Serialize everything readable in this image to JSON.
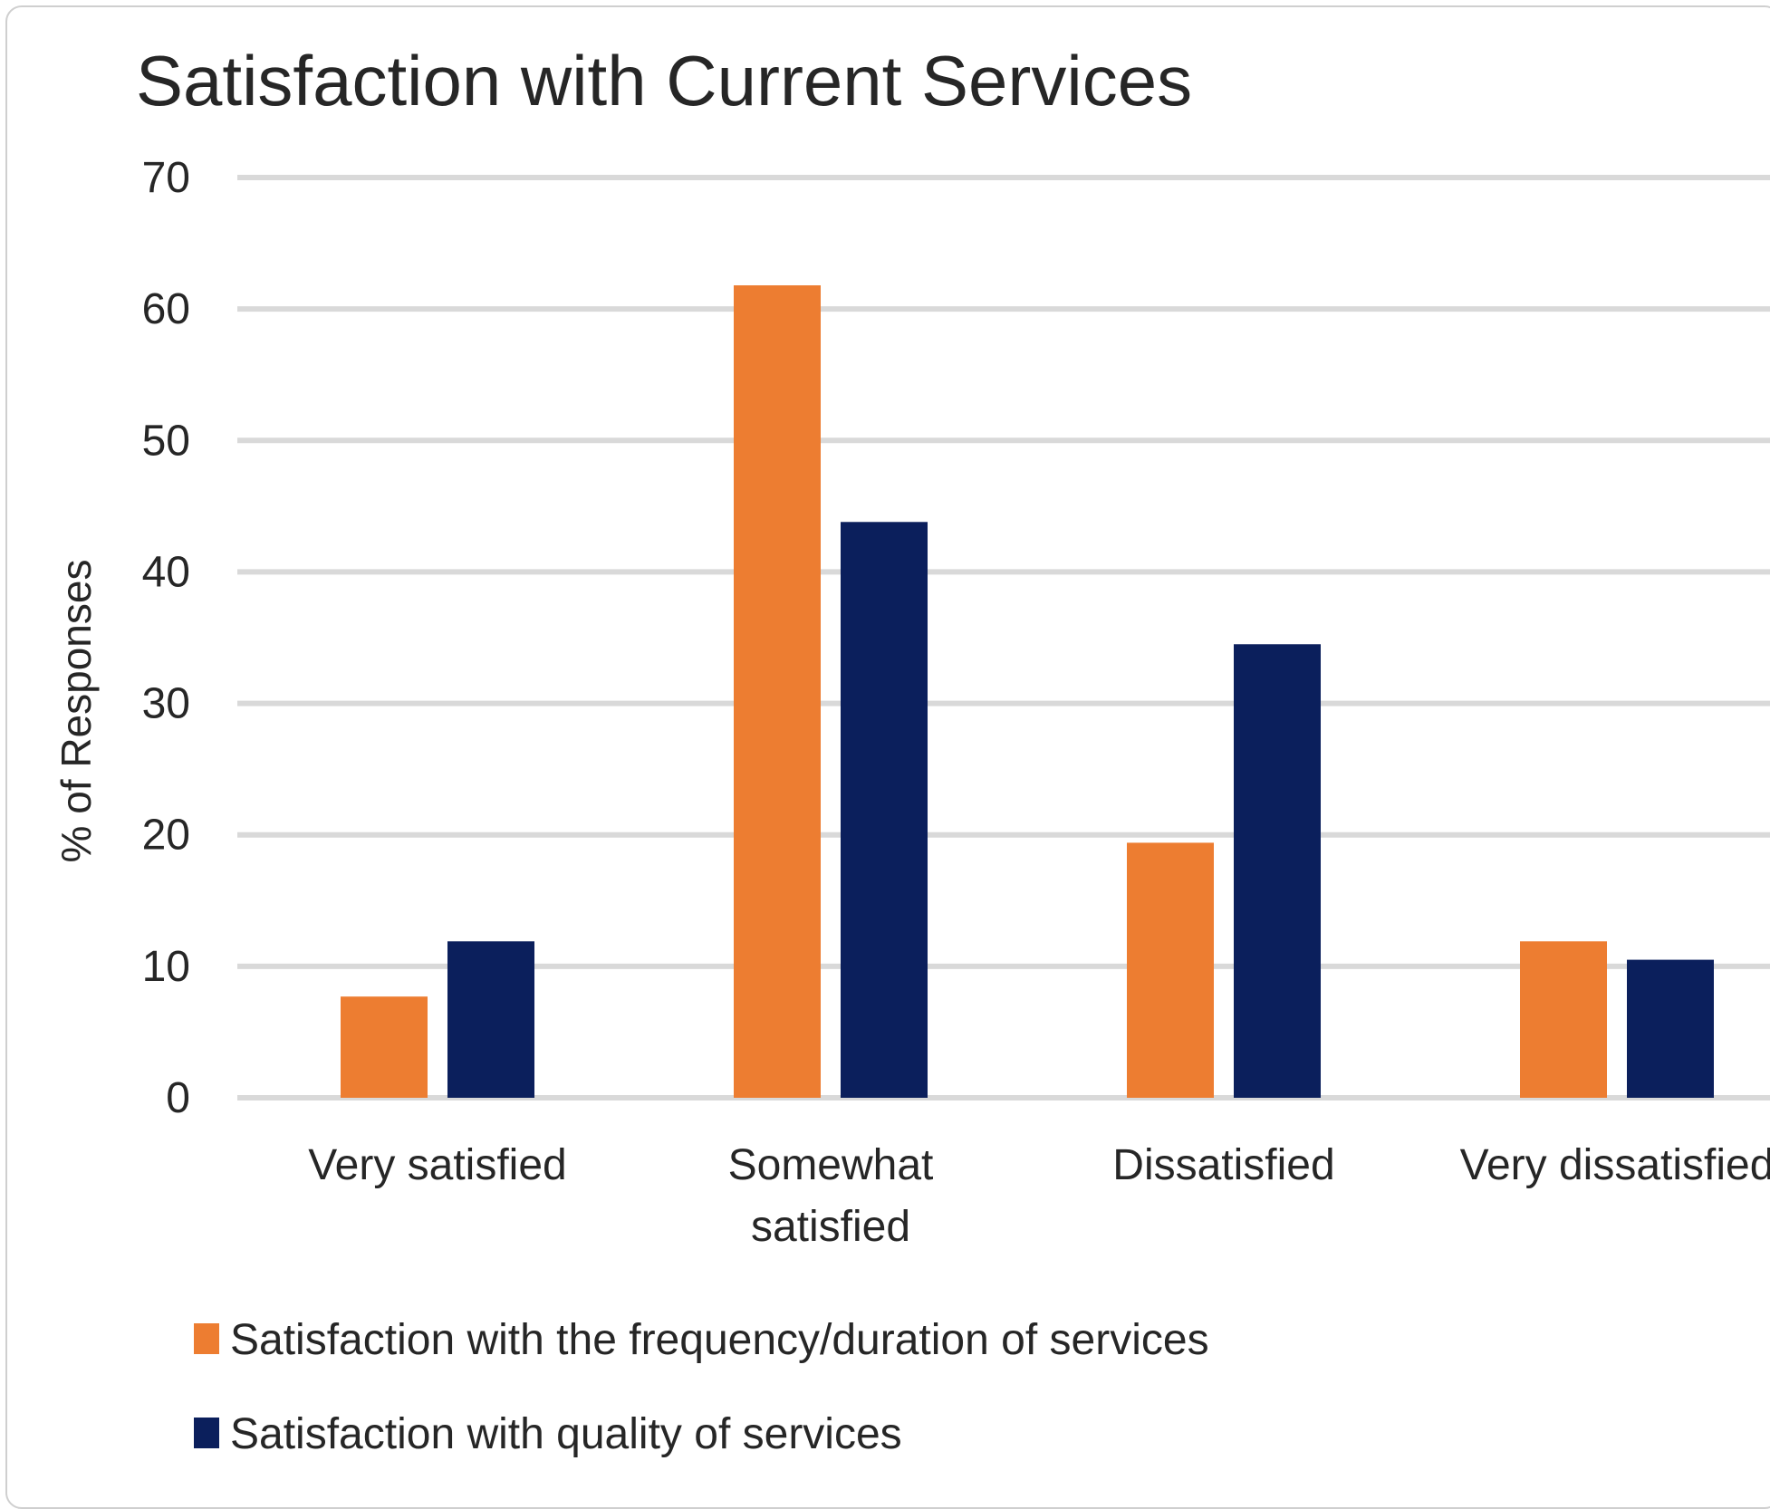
{
  "chart_data": {
    "type": "bar",
    "title": "Satisfaction with Current Services",
    "xlabel": "",
    "ylabel": "% of Responses",
    "ylim": [
      0,
      70
    ],
    "yticks": [
      0,
      10,
      20,
      30,
      40,
      50,
      60,
      70
    ],
    "grid": true,
    "legend_position": "bottom",
    "categories": [
      [
        "Very satisfied"
      ],
      [
        "Somewhat",
        "satisfied"
      ],
      [
        "Dissatisfied"
      ],
      [
        "Very dissatisfied"
      ]
    ],
    "series": [
      {
        "name": "Satisfaction with the frequency/duration of services",
        "color": "#ED7D31",
        "values": [
          7.7,
          61.8,
          19.4,
          11.9
        ]
      },
      {
        "name": "Satisfaction with quality of services",
        "color": "#0B1F5C",
        "values": [
          11.9,
          43.8,
          34.5,
          10.5
        ]
      }
    ],
    "gridline_color": "#d9d9d9"
  }
}
